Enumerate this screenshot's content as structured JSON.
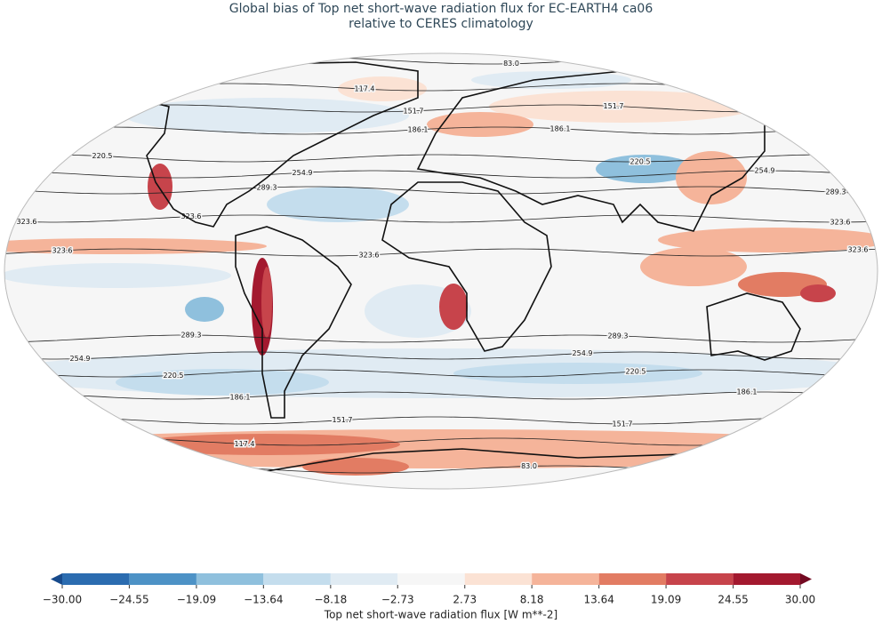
{
  "chart_data": {
    "type": "map",
    "title": [
      "Global bias of Top net short-wave radiation flux for EC-EARTH4 ca06",
      "relative to CERES climatology"
    ],
    "colorbar": {
      "label": "Top net short-wave radiation flux [W m**-2]",
      "ticks": [
        {
          "value": -30,
          "label": "−30.00"
        },
        {
          "value": -24.55,
          "label": "−24.55"
        },
        {
          "value": -19.09,
          "label": "−19.09"
        },
        {
          "value": -13.64,
          "label": "−13.64"
        },
        {
          "value": -8.18,
          "label": "−8.18"
        },
        {
          "value": -2.73,
          "label": "−2.73"
        },
        {
          "value": 2.73,
          "label": "2.73"
        },
        {
          "value": 8.18,
          "label": "8.18"
        },
        {
          "value": 13.64,
          "label": "13.64"
        },
        {
          "value": 19.09,
          "label": "19.09"
        },
        {
          "value": 24.55,
          "label": "24.55"
        },
        {
          "value": 30,
          "label": "30.00"
        }
      ],
      "colors": [
        "#2b6cb0",
        "#4d92c6",
        "#8fc0dd",
        "#c4dded",
        "#e0ebf3",
        "#f6f6f6",
        "#fbe2d4",
        "#f5b49a",
        "#e27c63",
        "#c7444b",
        "#a3192f"
      ],
      "under_color": "#174a8c",
      "over_color": "#730a22"
    },
    "contour_levels": [
      {
        "value": 83,
        "label": "83.0"
      },
      {
        "value": 117.4,
        "label": "117.4"
      },
      {
        "value": 151.7,
        "label": "151.7"
      },
      {
        "value": 186.1,
        "label": "186.1"
      },
      {
        "value": 220.5,
        "label": "220.5"
      },
      {
        "value": 254.9,
        "label": "254.9"
      },
      {
        "value": 289.3,
        "label": "289.3"
      },
      {
        "value": 323.6,
        "label": "323.6"
      }
    ]
  }
}
